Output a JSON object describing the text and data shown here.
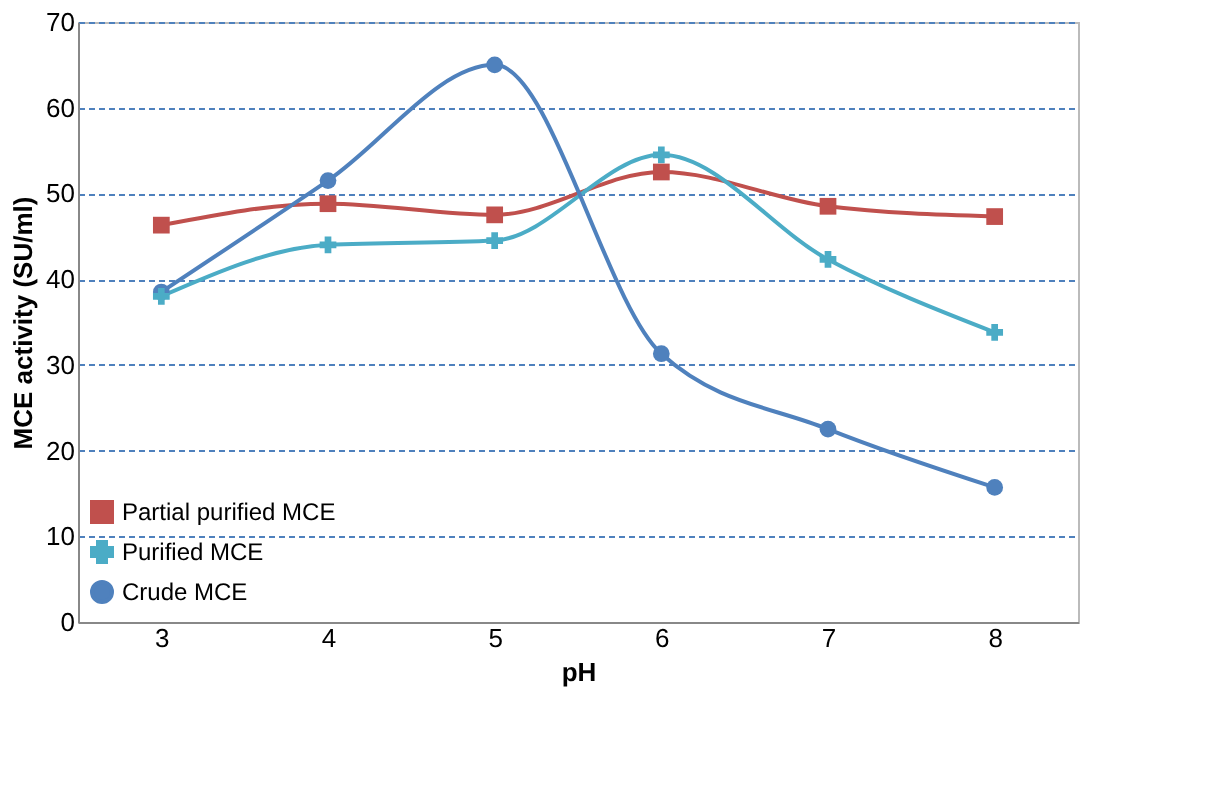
{
  "chart_data": {
    "type": "line",
    "xlabel": "pH",
    "ylabel": "MCE  activity (SU/ml)",
    "categories": [
      "3",
      "4",
      "5",
      "6",
      "7",
      "8"
    ],
    "series": [
      {
        "name": "Partial purified MCE",
        "color": "#c0504d",
        "marker": "square",
        "values": [
          46.3,
          48.8,
          47.5,
          52.5,
          48.5,
          47.3
        ]
      },
      {
        "name": "Purified MCE",
        "color": "#4bacc6",
        "marker": "cross",
        "values": [
          38,
          44,
          44.5,
          54.5,
          42.3,
          33.8
        ]
      },
      {
        "name": "Crude MCE",
        "color": "#4f81bd",
        "marker": "circle",
        "values": [
          38.5,
          51.5,
          65,
          31.3,
          22.5,
          15.7
        ]
      }
    ],
    "ylim": [
      0,
      70
    ],
    "yticks": [
      0,
      10,
      20,
      30,
      40,
      50,
      60,
      70
    ],
    "grid": "y",
    "legend": "bottom left",
    "line_style": "solid"
  }
}
